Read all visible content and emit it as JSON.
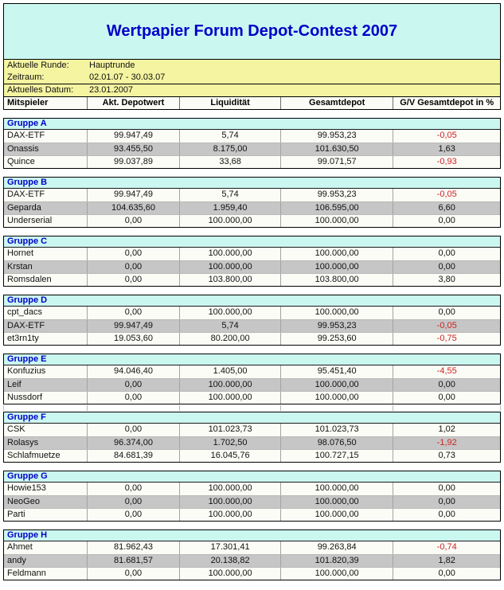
{
  "title": "Wertpapier Forum Depot-Contest 2007",
  "info": {
    "round_label": "Aktuelle Runde:",
    "round_value": "Hauptrunde",
    "period_label": "Zeitraum:",
    "period_value": "02.01.07 - 30.03.07",
    "date_label": "Aktuelles Datum:",
    "date_value": "23.01.2007"
  },
  "columns": [
    "Mitspieler",
    "Akt. Depotwert",
    "Liquidität",
    "Gesamtdepot",
    "G/V Gesamtdepot in %"
  ],
  "groups": [
    {
      "name": "Gruppe A",
      "divider_after": false,
      "rows": [
        {
          "cells": [
            "DAX-ETF",
            "99.947,49",
            "5,74",
            "99.953,23",
            "-0,05"
          ]
        },
        {
          "cells": [
            "Onassis",
            "93.455,50",
            "8.175,00",
            "101.630,50",
            "1,63"
          ]
        },
        {
          "cells": [
            "Quince",
            "99.037,89",
            "33,68",
            "99.071,57",
            "-0,93"
          ]
        }
      ]
    },
    {
      "name": "Gruppe B",
      "divider_after": false,
      "rows": [
        {
          "cells": [
            "DAX-ETF",
            "99.947,49",
            "5,74",
            "99.953,23",
            "-0,05"
          ]
        },
        {
          "cells": [
            "Geparda",
            "104.635,60",
            "1.959,40",
            "106.595,00",
            "6,60"
          ]
        },
        {
          "cells": [
            "Underserial",
            "0,00",
            "100.000,00",
            "100.000,00",
            "0,00"
          ]
        }
      ]
    },
    {
      "name": "Gruppe C",
      "divider_after": false,
      "rows": [
        {
          "cells": [
            "Hornet",
            "0,00",
            "100.000,00",
            "100.000,00",
            "0,00"
          ]
        },
        {
          "cells": [
            "Krstan",
            "0,00",
            "100.000,00",
            "100.000,00",
            "0,00"
          ]
        },
        {
          "cells": [
            "Romsdalen",
            "0,00",
            "103.800,00",
            "103.800,00",
            "3,80"
          ]
        }
      ]
    },
    {
      "name": "Gruppe D",
      "divider_after": false,
      "rows": [
        {
          "cells": [
            "cpt_dacs",
            "0,00",
            "100.000,00",
            "100.000,00",
            "0,00"
          ]
        },
        {
          "cells": [
            "DAX-ETF",
            "99.947,49",
            "5,74",
            "99.953,23",
            "-0,05"
          ]
        },
        {
          "cells": [
            "et3rn1ty",
            "19.053,60",
            "80.200,00",
            "99.253,60",
            "-0,75"
          ]
        }
      ]
    },
    {
      "name": "Gruppe E",
      "divider_after": true,
      "rows": [
        {
          "cells": [
            "Konfuzius",
            "94.046,40",
            "1.405,00",
            "95.451,40",
            "-4,55"
          ]
        },
        {
          "cells": [
            "Leif",
            "0,00",
            "100.000,00",
            "100.000,00",
            "0,00"
          ]
        },
        {
          "cells": [
            "Nussdorf",
            "0,00",
            "100.000,00",
            "100.000,00",
            "0,00"
          ]
        }
      ]
    },
    {
      "name": "Gruppe F",
      "divider_after": false,
      "rows": [
        {
          "cells": [
            "CSK",
            "0,00",
            "101.023,73",
            "101.023,73",
            "1,02"
          ]
        },
        {
          "cells": [
            "Rolasys",
            "96.374,00",
            "1.702,50",
            "98.076,50",
            "-1,92"
          ]
        },
        {
          "cells": [
            "Schlafmuetze",
            "84.681,39",
            "16.045,76",
            "100.727,15",
            "0,73"
          ]
        }
      ]
    },
    {
      "name": "Gruppe G",
      "divider_after": false,
      "rows": [
        {
          "cells": [
            "Howie153",
            "0,00",
            "100.000,00",
            "100.000,00",
            "0,00"
          ]
        },
        {
          "cells": [
            "NeoGeo",
            "0,00",
            "100.000,00",
            "100.000,00",
            "0,00"
          ]
        },
        {
          "cells": [
            "Parti",
            "0,00",
            "100.000,00",
            "100.000,00",
            "0,00"
          ]
        }
      ]
    },
    {
      "name": "Gruppe H",
      "divider_after": false,
      "rows": [
        {
          "cells": [
            "Ahmet",
            "81.962,43",
            "17.301,41",
            "99.263,84",
            "-0,74"
          ]
        },
        {
          "cells": [
            "andy",
            "81.681,57",
            "20.138,82",
            "101.820,39",
            "1,82"
          ]
        },
        {
          "cells": [
            "Feldmann",
            "0,00",
            "100.000,00",
            "100.000,00",
            "0,00"
          ]
        }
      ]
    }
  ],
  "colors": {
    "accent_blue": "#0000C8",
    "header_cyan": "#CBF7F1",
    "info_yellow": "#F5F4A1",
    "row_gray": "#C6C6C6",
    "row_white": "#FCFCF6",
    "neg_red": "#CC2222",
    "border_black": "#000000"
  }
}
